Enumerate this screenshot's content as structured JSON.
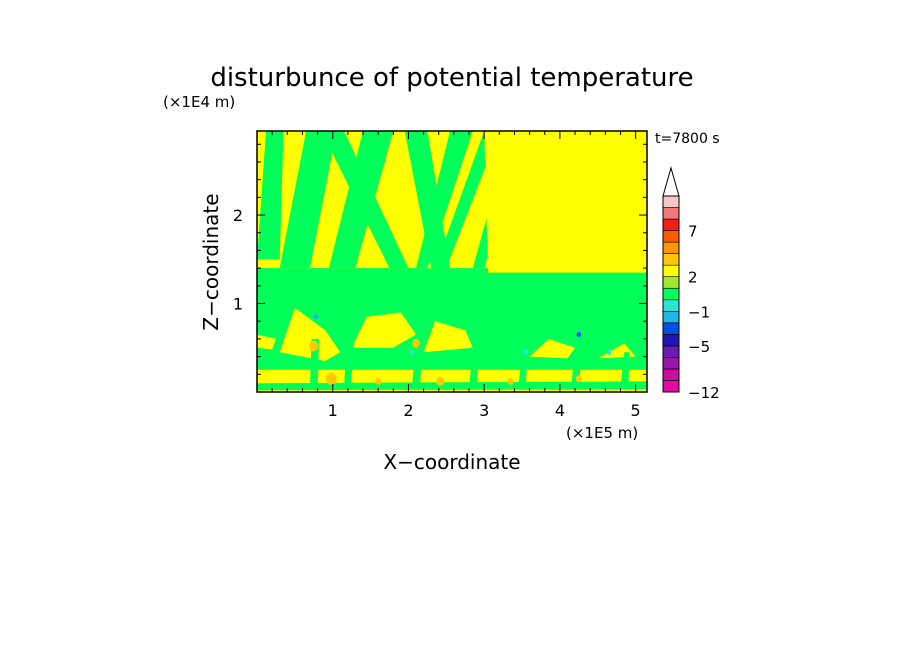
{
  "chart_data": {
    "type": "heatmap",
    "title": "disturbunce of potential temperature",
    "annotation": "t=7800 s",
    "xlabel": "X−coordinate",
    "ylabel": "Z−coordinate",
    "x_unit": "(×1E5 m)",
    "y_unit": "(×1E4 m)",
    "xlim": [
      0,
      5.15
    ],
    "ylim": [
      0,
      2.95
    ],
    "x_ticks": [
      {
        "value": 1,
        "label": "1"
      },
      {
        "value": 2,
        "label": "2"
      },
      {
        "value": 3,
        "label": "3"
      },
      {
        "value": 4,
        "label": "4"
      },
      {
        "value": 5,
        "label": "5"
      }
    ],
    "y_ticks": [
      {
        "value": 1,
        "label": "1"
      },
      {
        "value": 2,
        "label": "2"
      }
    ],
    "colorbar": {
      "levels": [
        {
          "color": "#e60aa5",
          "label": "−12"
        },
        {
          "color": "#c8109b",
          "label": ""
        },
        {
          "color": "#9b14a8",
          "label": ""
        },
        {
          "color": "#6a1bb0",
          "label": ""
        },
        {
          "color": "#1a1ab3",
          "label": "−5"
        },
        {
          "color": "#0050e6",
          "label": ""
        },
        {
          "color": "#23b4e6",
          "label": ""
        },
        {
          "color": "#28e6d2",
          "label": "−1"
        },
        {
          "color": "#00ff58",
          "label": ""
        },
        {
          "color": "#a0e632",
          "label": ""
        },
        {
          "color": "#ffff00",
          "label": "2"
        },
        {
          "color": "#ffc800",
          "label": ""
        },
        {
          "color": "#ff9600",
          "label": ""
        },
        {
          "color": "#ff5a00",
          "label": ""
        },
        {
          "color": "#f01e14",
          "label": "7"
        },
        {
          "color": "#f07878",
          "label": ""
        },
        {
          "color": "#f5c8c8",
          "label": ""
        }
      ],
      "extend": "max"
    },
    "field": {
      "background_color": "#ffff00",
      "layers": [
        {
          "name": "green",
          "color": "#00ff58",
          "polygons": [
            [
              [
                0,
                0.25
              ],
              [
                0,
                1.4
              ],
              [
                5.15,
                1.4
              ],
              [
                5.15,
                0.25
              ]
            ],
            [
              [
                0.3,
                1.4
              ],
              [
                0.65,
                2.95
              ],
              [
                1.05,
                2.95
              ],
              [
                0.7,
                1.4
              ]
            ],
            [
              [
                0.95,
                1.4
              ],
              [
                1.4,
                2.95
              ],
              [
                1.8,
                2.95
              ],
              [
                1.3,
                1.4
              ]
            ],
            [
              [
                1.75,
                1.4
              ],
              [
                0.85,
                2.95
              ],
              [
                1.15,
                2.95
              ],
              [
                2.0,
                1.4
              ]
            ],
            [
              [
                2.1,
                1.4
              ],
              [
                2.55,
                2.95
              ],
              [
                2.85,
                2.95
              ],
              [
                2.25,
                1.4
              ]
            ],
            [
              [
                2.35,
                1.4
              ],
              [
                3.0,
                2.95
              ],
              [
                3.2,
                2.95
              ],
              [
                2.5,
                1.4
              ]
            ],
            [
              [
                2.3,
                1.4
              ],
              [
                1.95,
                2.95
              ],
              [
                2.25,
                2.95
              ],
              [
                2.55,
                1.4
              ]
            ],
            [
              [
                2.85,
                1.4
              ],
              [
                3.35,
                2.95
              ],
              [
                3.55,
                2.95
              ],
              [
                3.0,
                1.4
              ]
            ],
            [
              [
                0,
                1.5
              ],
              [
                0.12,
                2.95
              ],
              [
                0.35,
                2.95
              ],
              [
                0.3,
                1.5
              ]
            ],
            [
              [
                4.75,
                2.55
              ],
              [
                4.85,
                2.95
              ],
              [
                5.1,
                2.95
              ],
              [
                4.95,
                2.55
              ]
            ]
          ]
        },
        {
          "name": "yellow",
          "color": "#ffff00",
          "polygons": [
            [
              [
                3.05,
                1.35
              ],
              [
                3.0,
                2.95
              ],
              [
                5.15,
                2.95
              ],
              [
                5.15,
                1.35
              ]
            ],
            [
              [
                0,
                0
              ],
              [
                0,
                0.25
              ],
              [
                5.15,
                0.25
              ],
              [
                5.15,
                0
              ]
            ],
            [
              [
                0.3,
                0.45
              ],
              [
                0.5,
                0.95
              ],
              [
                0.9,
                0.7
              ],
              [
                1.1,
                0.45
              ],
              [
                0.9,
                0.35
              ]
            ],
            [
              [
                1.25,
                0.5
              ],
              [
                1.45,
                0.85
              ],
              [
                1.9,
                0.9
              ],
              [
                2.1,
                0.65
              ],
              [
                1.8,
                0.5
              ]
            ],
            [
              [
                2.2,
                0.45
              ],
              [
                2.35,
                0.8
              ],
              [
                2.75,
                0.7
              ],
              [
                2.85,
                0.5
              ]
            ],
            [
              [
                3.6,
                0.4
              ],
              [
                3.85,
                0.6
              ],
              [
                4.2,
                0.5
              ],
              [
                4.1,
                0.38
              ]
            ],
            [
              [
                4.5,
                0.38
              ],
              [
                4.85,
                0.55
              ],
              [
                5.0,
                0.4
              ]
            ],
            [
              [
                0,
                0.5
              ],
              [
                0,
                0.65
              ],
              [
                0.25,
                0.6
              ],
              [
                0.2,
                0.48
              ]
            ]
          ]
        },
        {
          "name": "green-low",
          "color": "#00ff58",
          "polygons": [
            [
              [
                0.7,
                0.05
              ],
              [
                0.72,
                0.6
              ],
              [
                0.82,
                0.6
              ],
              [
                0.8,
                0.05
              ]
            ],
            [
              [
                1.15,
                0.05
              ],
              [
                1.18,
                0.55
              ],
              [
                1.28,
                0.55
              ],
              [
                1.24,
                0.05
              ]
            ],
            [
              [
                2.05,
                0.05
              ],
              [
                2.1,
                0.75
              ],
              [
                2.2,
                0.75
              ],
              [
                2.15,
                0.05
              ]
            ],
            [
              [
                2.8,
                0.05
              ],
              [
                2.85,
                0.45
              ],
              [
                2.92,
                0.45
              ],
              [
                2.9,
                0.05
              ]
            ],
            [
              [
                3.45,
                0.05
              ],
              [
                3.5,
                0.45
              ],
              [
                3.57,
                0.45
              ],
              [
                3.55,
                0.05
              ]
            ],
            [
              [
                4.15,
                0.05
              ],
              [
                4.2,
                0.55
              ],
              [
                4.3,
                0.55
              ],
              [
                4.25,
                0.05
              ]
            ],
            [
              [
                4.8,
                0.05
              ],
              [
                4.85,
                0.45
              ],
              [
                4.92,
                0.45
              ],
              [
                4.9,
                0.05
              ]
            ],
            [
              [
                0,
                0.02
              ],
              [
                0,
                0.1
              ],
              [
                5.15,
                0.12
              ],
              [
                5.15,
                0.03
              ]
            ]
          ]
        }
      ],
      "spots": [
        {
          "x": 0.75,
          "y": 0.52,
          "r": 0.06,
          "color": "#ffc800"
        },
        {
          "x": 0.98,
          "y": 0.15,
          "r": 0.07,
          "color": "#ffc800"
        },
        {
          "x": 1.6,
          "y": 0.12,
          "r": 0.04,
          "color": "#ffc800"
        },
        {
          "x": 2.1,
          "y": 0.55,
          "r": 0.05,
          "color": "#ffc800"
        },
        {
          "x": 2.42,
          "y": 0.12,
          "r": 0.05,
          "color": "#ffc800"
        },
        {
          "x": 3.35,
          "y": 0.12,
          "r": 0.04,
          "color": "#ffc800"
        },
        {
          "x": 4.25,
          "y": 0.15,
          "r": 0.04,
          "color": "#ffc800"
        },
        {
          "x": 0.78,
          "y": 0.85,
          "r": 0.03,
          "color": "#23b4e6"
        },
        {
          "x": 2.05,
          "y": 0.45,
          "r": 0.03,
          "color": "#28e6d2"
        },
        {
          "x": 3.55,
          "y": 0.45,
          "r": 0.03,
          "color": "#28e6d2"
        },
        {
          "x": 4.25,
          "y": 0.65,
          "r": 0.03,
          "color": "#0050e6"
        },
        {
          "x": 4.65,
          "y": 0.45,
          "r": 0.03,
          "color": "#28e6d2"
        }
      ]
    }
  }
}
